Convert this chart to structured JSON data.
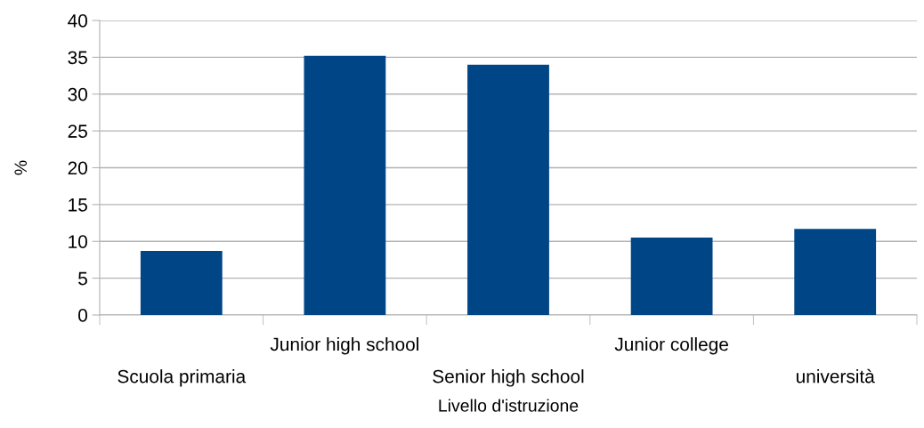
{
  "chart_data": {
    "type": "bar",
    "xlabel": "Livello d'istruzione",
    "ylabel": "%",
    "categories": [
      "Scuola primaria",
      "Junior high school",
      "Senior high school",
      "Junior college",
      "università"
    ],
    "values": [
      8.7,
      35.2,
      34.0,
      10.5,
      11.7
    ],
    "color": "#004586",
    "ylim": [
      0,
      40
    ],
    "yticks": [
      0,
      5,
      10,
      15,
      20,
      25,
      30,
      35,
      40
    ],
    "grid": "y",
    "legend": false
  }
}
